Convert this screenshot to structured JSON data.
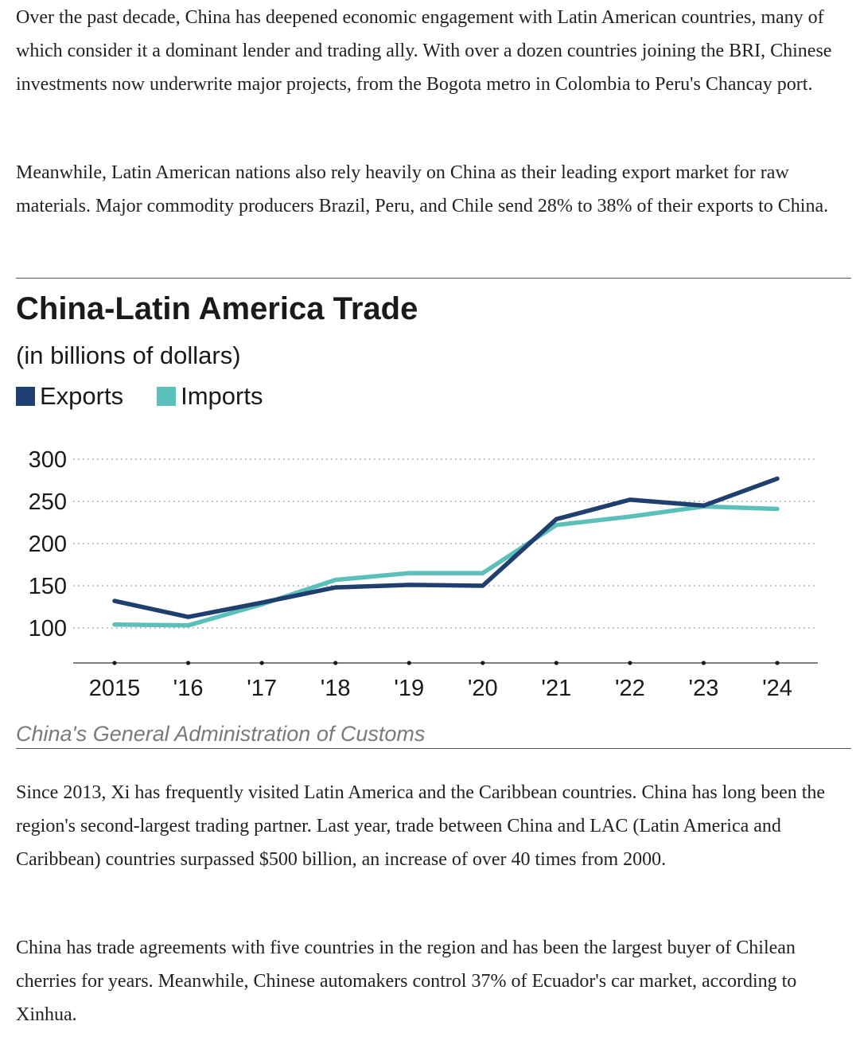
{
  "paragraphs_before": [
    "Over the past decade, China has deepened economic engagement with Latin American countries, many of which consider it a dominant lender and trading ally. With over a dozen countries joining the BRI, Chinese investments now underwrite major projects, from the Bogota metro in Colombia to Peru's Chancay port.",
    "Meanwhile, Latin American nations also rely heavily on China as their leading export market for raw materials. Major commodity producers Brazil, Peru, and Chile send 28% to 38% of their exports to China."
  ],
  "paragraphs_after": [
    "Since 2013, Xi has frequently visited Latin America and the Caribbean countries. China has long been the region's second-largest trading partner. Last year, trade between China and LAC (Latin America and Caribbean) countries surpassed $500 billion, an increase of over 40 times from 2000.",
    "China has trade agreements with five countries in the region and has been the largest buyer of Chilean cherries for years. Meanwhile, Chinese automakers control 37% of Ecuador's car market, according to Xinhua."
  ],
  "chart_data": {
    "type": "line",
    "title": "China-Latin America Trade",
    "subtitle": "(in billions of dollars)",
    "source": "China's General Administration of Customs",
    "categories": [
      "2015",
      "'16",
      "'17",
      "'18",
      "'19",
      "'20",
      "'21",
      "'22",
      "'23",
      "'24"
    ],
    "series": [
      {
        "name": "Exports",
        "color": "#1f3f6e",
        "values": [
          132,
          113,
          130,
          148,
          151,
          150,
          229,
          252,
          245,
          277
        ]
      },
      {
        "name": "Imports",
        "color": "#5bbfba",
        "values": [
          104,
          103,
          128,
          157,
          165,
          165,
          222,
          232,
          244,
          241
        ]
      }
    ],
    "yticks": [
      100,
      150,
      200,
      250,
      300
    ],
    "ylim": [
      60,
      300
    ],
    "grid": true,
    "legend_position": "top-left"
  }
}
